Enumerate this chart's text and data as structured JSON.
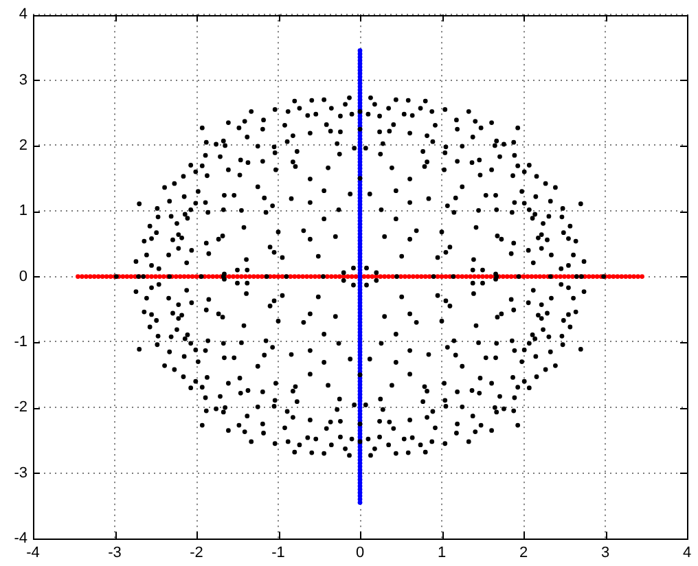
{
  "chart_data": {
    "type": "scatter",
    "xlim": [
      -4,
      4
    ],
    "ylim": [
      -4,
      4
    ],
    "xticks": [
      -4,
      -3,
      -2,
      -1,
      0,
      1,
      2,
      3,
      4
    ],
    "yticks": [
      -4,
      -3,
      -2,
      -1,
      0,
      1,
      2,
      3,
      4
    ],
    "grid": true,
    "marker": "circle",
    "series": [
      {
        "color": "#000000",
        "x": [
          -2.7,
          -2.74,
          -2.64,
          -2.61,
          -2.55,
          -2.46,
          -2.57,
          -2.55,
          -2.49,
          -2.48,
          -2.47,
          -2.39,
          -2.33,
          -2.34,
          -2.31,
          -2.29,
          -2.27,
          -2.24,
          -2.22,
          -2.22,
          -2.18,
          -2.16,
          -2.15,
          -2.14,
          -2.12,
          -2.11,
          -2.07,
          -2.07,
          -2.06,
          -2.01,
          -2.01,
          -1.98,
          -1.93,
          -1.93,
          -1.88,
          -1.89,
          -1.89,
          -1.87,
          -1.86,
          -1.88,
          -1.85,
          -1.76,
          -1.71,
          -1.73,
          -1.67,
          -1.65,
          -1.66,
          -1.67,
          -1.68,
          -1.61,
          -1.61,
          -1.54,
          -1.48,
          -1.46,
          -1.47,
          -1.45,
          -1.42,
          -1.41,
          -1.38,
          -1.37,
          -1.39,
          -1.5,
          -1.38,
          -1.33,
          -1.25,
          -1.25,
          -1.18,
          -1.19,
          -1.19,
          -1.17,
          -1.15,
          -1.1,
          -1.07,
          -1.05,
          -1.04,
          -1.04,
          -1.05,
          -1.03,
          -1.0,
          -0.95,
          -0.92,
          -0.88,
          -0.89,
          -0.82,
          -0.84,
          -0.8,
          -0.82,
          -0.79,
          -0.77,
          -0.74,
          -0.69,
          -0.64,
          -0.61,
          -0.61,
          -0.61,
          -0.59,
          -0.61,
          -0.54,
          -0.51,
          -0.44,
          -0.44,
          -0.44,
          -0.41,
          -0.39,
          -0.36,
          -0.35,
          -0.3,
          -0.28,
          -0.24,
          -0.24,
          -0.25,
          -0.26,
          -0.18,
          -0.13,
          -0.12,
          -0.1,
          -0.07,
          -0.08,
          -0.2,
          -1.66,
          2.7,
          2.74,
          2.64,
          2.61,
          2.55,
          2.46,
          2.57,
          2.55,
          2.49,
          2.48,
          2.47,
          2.39,
          2.33,
          2.34,
          2.31,
          2.29,
          2.27,
          2.24,
          2.22,
          2.22,
          2.18,
          2.16,
          2.15,
          2.14,
          2.12,
          2.11,
          2.07,
          2.07,
          2.06,
          2.01,
          2.01,
          1.98,
          1.93,
          1.93,
          1.88,
          1.89,
          1.89,
          1.87,
          1.86,
          1.88,
          1.85,
          1.76,
          1.71,
          1.73,
          1.67,
          1.65,
          1.66,
          1.67,
          1.68,
          1.61,
          1.61,
          1.54,
          1.48,
          1.46,
          1.47,
          1.45,
          1.42,
          1.41,
          1.38,
          1.37,
          1.39,
          1.5,
          1.38,
          1.33,
          1.25,
          1.25,
          1.18,
          1.19,
          1.19,
          1.17,
          1.15,
          1.1,
          1.07,
          1.05,
          1.04,
          1.04,
          1.05,
          1.03,
          1.0,
          0.95,
          0.92,
          0.88,
          0.89,
          0.82,
          0.84,
          0.8,
          0.82,
          0.79,
          0.77,
          0.74,
          0.69,
          0.64,
          0.61,
          0.61,
          0.61,
          0.59,
          0.61,
          0.54,
          0.51,
          0.44,
          0.44,
          0.44,
          0.41,
          0.39,
          0.36,
          0.35,
          0.3,
          0.28,
          0.24,
          0.24,
          0.25,
          0.26,
          0.18,
          0.13,
          0.12,
          0.1,
          0.07,
          0.08,
          0.2,
          1.66,
          -2.7,
          -2.74,
          -2.64,
          -2.61,
          -2.55,
          -2.46,
          -2.57,
          -2.55,
          -2.49,
          -2.48,
          -2.47,
          -2.39,
          -2.33,
          -2.34,
          -2.31,
          -2.29,
          -2.27,
          -2.24,
          -2.22,
          -2.22,
          -2.18,
          -2.16,
          -2.15,
          -2.14,
          -2.12,
          -2.11,
          -2.07,
          -2.07,
          -2.06,
          -2.01,
          -2.01,
          -1.98,
          -1.93,
          -1.93,
          -1.88,
          -1.89,
          -1.89,
          -1.87,
          -1.86,
          -1.88,
          -1.85,
          -1.76,
          -1.71,
          -1.73,
          -1.67,
          -1.65,
          -1.66,
          -1.67,
          -1.68,
          -1.61,
          -1.61,
          -1.54,
          -1.48,
          -1.46,
          -1.47,
          -1.45,
          -1.42,
          -1.41,
          -1.38,
          -1.37,
          -1.39,
          -1.5,
          -1.38,
          -1.33,
          -1.25,
          -1.25,
          -1.18,
          -1.19,
          -1.19,
          -1.17,
          -1.15,
          -1.1,
          -1.07,
          -1.05,
          -1.04,
          -1.04,
          -1.05,
          -1.03,
          -1.0,
          -0.95,
          -0.92,
          -0.88,
          -0.89,
          -0.82,
          -0.84,
          -0.8,
          -0.82,
          -0.79,
          -0.77,
          -0.74,
          -0.69,
          -0.64,
          -0.61,
          -0.61,
          -0.61,
          -0.59,
          -0.61,
          -0.54,
          -0.51,
          -0.44,
          -0.44,
          -0.44,
          -0.41,
          -0.39,
          -0.36,
          -0.35,
          -0.3,
          -0.28,
          -0.24,
          -0.24,
          -0.25,
          -0.26,
          -0.18,
          -0.13,
          -0.12,
          -0.1,
          -0.07,
          -0.08,
          -0.2,
          -1.66,
          2.7,
          2.74,
          2.64,
          2.61,
          2.55,
          2.46,
          2.57,
          2.55,
          2.49,
          2.48,
          2.47,
          2.39,
          2.33,
          2.34,
          2.31,
          2.29,
          2.27,
          2.24,
          2.22,
          2.22,
          2.18,
          2.16,
          2.15,
          2.14,
          2.12,
          2.11,
          2.07,
          2.07,
          2.06,
          2.01,
          2.01,
          1.98,
          1.93,
          1.93,
          1.88,
          1.89,
          1.89,
          1.87,
          1.86,
          1.88,
          1.85,
          1.76,
          1.71,
          1.73,
          1.67,
          1.65,
          1.66,
          1.67,
          1.68,
          1.61,
          1.61,
          1.54,
          1.48,
          1.46,
          1.47,
          1.45,
          1.42,
          1.41,
          1.38,
          1.37,
          1.39,
          1.5,
          1.38,
          1.33,
          1.25,
          1.25,
          1.18,
          1.19,
          1.19,
          1.17,
          1.15,
          1.1,
          1.07,
          1.05,
          1.04,
          1.04,
          1.05,
          1.03,
          1.0,
          0.95,
          0.92,
          0.88,
          0.89,
          0.82,
          0.84,
          0.8,
          0.82,
          0.79,
          0.77,
          0.74,
          0.69,
          0.64,
          0.61,
          0.61,
          0.61,
          0.59,
          0.61,
          0.54,
          0.51,
          0.44,
          0.44,
          0.44,
          0.41,
          0.39,
          0.36,
          0.35,
          0.3,
          0.28,
          0.24,
          0.24,
          0.25,
          0.26,
          0.18,
          0.13,
          0.12,
          0.1,
          0.07,
          0.08,
          0.2,
          1.66,
          -2.98,
          -2.71,
          -2.65,
          -2.33,
          -1.94,
          -1.67,
          -1.14,
          -0.9,
          -0.45,
          0.45,
          0.9,
          1.14,
          1.67,
          1.94,
          2.33,
          2.65,
          2.71,
          2.98,
          0,
          0,
          0,
          0,
          0,
          0
        ],
        "values": [
          1.11,
          0.23,
          0.54,
          0.33,
          0.17,
          0.12,
          0.77,
          0.58,
          0.67,
          1.04,
          0.91,
          1.36,
          1.15,
          0.33,
          0.92,
          0.56,
          1.42,
          0.81,
          0.64,
          0.43,
          0.59,
          1.53,
          1.22,
          0.95,
          0.21,
          0.89,
          1.7,
          1.02,
          0.4,
          1.6,
          1.12,
          1.3,
          2.27,
          1.69,
          2.05,
          1.85,
          1.13,
          1.54,
          0.98,
          0.51,
          0.35,
          2.02,
          1.83,
          0.57,
          2.07,
          2.0,
          1.24,
          1.02,
          0.62,
          2.35,
          1.63,
          1.24,
          2.27,
          1.78,
          1.55,
          1.01,
          0.75,
          2.37,
          2.13,
          1.74,
          0.26,
          0.1,
          0.1,
          2.52,
          1.99,
          1.37,
          2.39,
          2.25,
          1.76,
          1.2,
          0.98,
          0.45,
          1.08,
          1.98,
          1.89,
          2.55,
          0.37,
          1.63,
          0.68,
          0.29,
          2.31,
          2.52,
          2.06,
          2.15,
          1.19,
          2.68,
          1.75,
          1.68,
          1.91,
          2.57,
          0.7,
          2.46,
          1.49,
          1.13,
          0.57,
          2.69,
          2.19,
          2.48,
          0.31,
          2.7,
          1.31,
          0.88,
          2.32,
          1.66,
          2.22,
          2.57,
          0.61,
          2.03,
          2.21,
          2.45,
          1.87,
          1.02,
          2.63,
          2.73,
          1.26,
          2.48,
          1.96,
          0.13,
          0.06,
          0.04,
          1.11,
          0.23,
          0.54,
          0.33,
          0.17,
          0.12,
          0.77,
          0.58,
          0.67,
          1.04,
          0.91,
          1.36,
          1.15,
          0.33,
          0.92,
          0.56,
          1.42,
          0.81,
          0.64,
          0.43,
          0.59,
          1.53,
          1.22,
          0.95,
          0.21,
          0.89,
          1.7,
          1.02,
          0.4,
          1.6,
          1.12,
          1.3,
          2.27,
          1.69,
          2.05,
          1.85,
          1.13,
          1.54,
          0.98,
          0.51,
          0.35,
          2.02,
          1.83,
          0.57,
          2.07,
          2.0,
          1.24,
          1.02,
          0.62,
          2.35,
          1.63,
          1.24,
          2.27,
          1.78,
          1.55,
          1.01,
          0.75,
          2.37,
          2.13,
          1.74,
          0.26,
          0.1,
          0.1,
          2.52,
          1.99,
          1.37,
          2.39,
          2.25,
          1.76,
          1.2,
          0.98,
          0.45,
          1.08,
          1.98,
          1.89,
          2.55,
          0.37,
          1.63,
          0.68,
          0.29,
          2.31,
          2.52,
          2.06,
          2.15,
          1.19,
          2.68,
          1.75,
          1.68,
          1.91,
          2.57,
          0.7,
          2.46,
          1.49,
          1.13,
          0.57,
          2.69,
          2.19,
          2.48,
          0.31,
          2.7,
          1.31,
          0.88,
          2.32,
          1.66,
          2.22,
          2.57,
          0.61,
          2.03,
          2.21,
          2.45,
          1.87,
          1.02,
          2.63,
          2.73,
          1.26,
          2.48,
          1.96,
          0.13,
          0.06,
          0.04,
          -1.11,
          -0.23,
          -0.54,
          -0.33,
          -0.17,
          -0.12,
          -0.77,
          -0.58,
          -0.67,
          -1.04,
          -0.91,
          -1.36,
          -1.15,
          -0.33,
          -0.92,
          -0.56,
          -1.42,
          -0.81,
          -0.64,
          -0.43,
          -0.59,
          -1.53,
          -1.22,
          -0.95,
          -0.21,
          -0.89,
          -1.7,
          -1.02,
          -0.4,
          -1.6,
          -1.12,
          -1.3,
          -2.27,
          -1.69,
          -2.05,
          -1.85,
          -1.13,
          -1.54,
          -0.98,
          -0.51,
          -0.35,
          -2.02,
          -1.83,
          -0.57,
          -2.07,
          -2.0,
          -1.24,
          -1.02,
          -0.62,
          -2.35,
          -1.63,
          -1.24,
          -2.27,
          -1.78,
          -1.55,
          -1.01,
          -0.75,
          -2.37,
          -2.13,
          -1.74,
          -0.26,
          -0.1,
          -0.1,
          -2.52,
          -1.99,
          -1.37,
          -2.39,
          -2.25,
          -1.76,
          -1.2,
          -0.98,
          -0.45,
          -1.08,
          -1.98,
          -1.89,
          -2.55,
          -0.37,
          -1.63,
          -0.68,
          -0.29,
          -2.31,
          -2.52,
          -2.06,
          -2.15,
          -1.19,
          -2.68,
          -1.75,
          -1.68,
          -1.91,
          -2.57,
          -0.7,
          -2.46,
          -1.49,
          -1.13,
          -0.57,
          -2.69,
          -2.19,
          -2.48,
          -0.31,
          -2.7,
          -1.31,
          -0.88,
          -2.32,
          -1.66,
          -2.22,
          -2.57,
          -0.61,
          -2.03,
          -2.21,
          -2.45,
          -1.87,
          -1.02,
          -2.63,
          -2.73,
          -1.26,
          -2.48,
          -1.96,
          -0.13,
          -0.06,
          -0.04,
          -1.11,
          -0.23,
          -0.54,
          -0.33,
          -0.17,
          -0.12,
          -0.77,
          -0.58,
          -0.67,
          -1.04,
          -0.91,
          -1.36,
          -1.15,
          -0.33,
          -0.92,
          -0.56,
          -1.42,
          -0.81,
          -0.64,
          -0.43,
          -0.59,
          -1.53,
          -1.22,
          -0.95,
          -0.21,
          -0.89,
          -1.7,
          -1.02,
          -0.4,
          -1.6,
          -1.12,
          -1.3,
          -2.27,
          -1.69,
          -2.05,
          -1.85,
          -1.13,
          -1.54,
          -0.98,
          -0.51,
          -0.35,
          -2.02,
          -1.83,
          -0.57,
          -2.07,
          -2.0,
          -1.24,
          -1.02,
          -0.62,
          -2.35,
          -1.63,
          -1.24,
          -2.27,
          -1.78,
          -1.55,
          -1.01,
          -0.75,
          -2.37,
          -2.13,
          -1.74,
          -0.26,
          -0.1,
          -0.1,
          -2.52,
          -1.99,
          -1.37,
          -2.39,
          -2.25,
          -1.76,
          -1.2,
          -0.98,
          -0.45,
          -1.08,
          -1.98,
          -1.89,
          -2.55,
          -0.37,
          -1.63,
          -0.68,
          -0.29,
          -2.31,
          -2.52,
          -2.06,
          -2.15,
          -1.19,
          -2.68,
          -1.75,
          -1.68,
          -1.91,
          -2.57,
          -0.7,
          -2.46,
          -1.49,
          -1.13,
          -0.57,
          -2.69,
          -2.19,
          -2.48,
          -0.31,
          -2.7,
          -1.31,
          -0.88,
          -2.32,
          -1.66,
          -2.22,
          -2.57,
          -0.61,
          -2.03,
          -2.21,
          -2.45,
          -1.87,
          -1.02,
          -2.63,
          -2.73,
          -1.26,
          -2.48,
          -1.96,
          -0.13,
          -0.06,
          -0.04,
          0,
          0,
          0,
          0,
          0,
          0,
          0,
          0,
          0,
          0,
          0,
          0,
          0,
          0,
          0,
          0,
          0,
          0,
          2.52,
          2.25,
          1.5,
          -1.5,
          -2.25,
          -2.52
        ]
      },
      {
        "color": "#0000ff",
        "x": [
          0,
          0,
          0,
          0,
          0,
          0,
          0,
          0,
          0,
          0,
          0,
          0,
          0,
          0,
          0,
          0,
          0,
          0,
          0,
          0,
          0,
          0,
          0,
          0,
          0,
          0,
          0,
          0,
          0,
          0,
          0,
          0,
          0,
          0,
          0,
          0,
          0,
          0,
          0,
          0,
          0,
          0,
          0,
          0,
          0,
          0,
          0,
          0,
          0,
          0,
          0,
          0,
          0,
          0,
          0,
          0,
          0,
          0,
          0,
          0,
          0,
          0,
          0,
          0,
          0,
          0,
          0,
          0,
          0,
          0,
          0,
          0,
          0,
          0,
          0,
          0,
          0,
          0,
          0,
          0,
          0,
          0,
          0,
          0,
          0,
          0,
          0,
          0,
          0,
          0,
          0,
          0,
          0,
          0,
          0,
          0,
          0,
          0,
          0,
          0,
          0,
          0,
          0,
          0,
          0,
          0,
          0,
          0,
          0,
          0,
          0,
          0,
          0,
          0,
          0,
          0,
          0,
          0,
          0,
          0,
          0,
          0,
          0,
          0,
          0,
          0,
          0,
          0,
          0,
          0,
          0,
          0,
          0,
          0,
          0,
          0,
          0,
          0,
          0
        ],
        "values": [
          -3.45,
          -3.4,
          -3.35,
          -3.3,
          -3.25,
          -3.2,
          -3.15,
          -3.1,
          -3.05,
          -3,
          -2.95,
          -2.9,
          -2.85,
          -2.8,
          -2.75,
          -2.7,
          -2.65,
          -2.6,
          -2.55,
          -2.5,
          -2.45,
          -2.4,
          -2.35,
          -2.3,
          -2.25,
          -2.2,
          -2.15,
          -2.1,
          -2.05,
          -2,
          -1.95,
          -1.9,
          -1.85,
          -1.8,
          -1.75,
          -1.7,
          -1.65,
          -1.6,
          -1.55,
          -1.5,
          -1.45,
          -1.4,
          -1.35,
          -1.3,
          -1.25,
          -1.2,
          -1.15,
          -1.1,
          -1.05,
          -1,
          -0.95,
          -0.9,
          -0.85,
          -0.8,
          -0.75,
          -0.7,
          -0.65,
          -0.6,
          -0.55,
          -0.5,
          -0.45,
          -0.4,
          -0.35,
          -0.3,
          -0.25,
          -0.2,
          -0.15,
          -0.1,
          -0.05,
          0,
          0.05,
          0.1,
          0.15,
          0.2,
          0.25,
          0.3,
          0.35,
          0.4,
          0.45,
          0.5,
          0.55,
          0.6,
          0.65,
          0.7,
          0.75,
          0.8,
          0.85,
          0.9,
          0.95,
          1,
          1.05,
          1.1,
          1.15,
          1.2,
          1.25,
          1.3,
          1.35,
          1.4,
          1.45,
          1.5,
          1.55,
          1.6,
          1.65,
          1.7,
          1.75,
          1.8,
          1.85,
          1.9,
          1.95,
          2,
          2.05,
          2.1,
          2.15,
          2.2,
          2.25,
          2.3,
          2.35,
          2.4,
          2.45,
          2.5,
          2.55,
          2.6,
          2.65,
          2.7,
          2.75,
          2.8,
          2.85,
          2.9,
          2.95,
          3,
          3.05,
          3.1,
          3.15,
          3.2,
          3.25,
          3.3,
          3.35,
          3.4,
          3.45
        ]
      },
      {
        "color": "#ff0000",
        "x": [
          -3.45,
          -3.4,
          -3.35,
          -3.3,
          -3.25,
          -3.2,
          -3.15,
          -3.1,
          -3.05,
          -3,
          -2.95,
          -2.9,
          -2.85,
          -2.8,
          -2.75,
          -2.7,
          -2.65,
          -2.6,
          -2.55,
          -2.5,
          -2.45,
          -2.4,
          -2.35,
          -2.3,
          -2.25,
          -2.2,
          -2.15,
          -2.1,
          -2.05,
          -2,
          -1.95,
          -1.9,
          -1.85,
          -1.8,
          -1.75,
          -1.7,
          -1.65,
          -1.6,
          -1.55,
          -1.5,
          -1.45,
          -1.4,
          -1.35,
          -1.3,
          -1.25,
          -1.2,
          -1.15,
          -1.1,
          -1.05,
          -1,
          -0.95,
          -0.9,
          -0.85,
          -0.8,
          -0.75,
          -0.7,
          -0.65,
          -0.6,
          -0.55,
          -0.5,
          -0.45,
          -0.4,
          -0.35,
          -0.3,
          -0.25,
          -0.2,
          -0.15,
          -0.1,
          -0.05,
          0,
          0.05,
          0.1,
          0.15,
          0.2,
          0.25,
          0.3,
          0.35,
          0.4,
          0.45,
          0.5,
          0.55,
          0.6,
          0.65,
          0.7,
          0.75,
          0.8,
          0.85,
          0.9,
          0.95,
          1,
          1.05,
          1.1,
          1.15,
          1.2,
          1.25,
          1.3,
          1.35,
          1.4,
          1.45,
          1.5,
          1.55,
          1.6,
          1.65,
          1.7,
          1.75,
          1.8,
          1.85,
          1.9,
          1.95,
          2,
          2.05,
          2.1,
          2.15,
          2.2,
          2.25,
          2.3,
          2.35,
          2.4,
          2.45,
          2.5,
          2.55,
          2.6,
          2.65,
          2.7,
          2.75,
          2.8,
          2.85,
          2.9,
          2.95,
          3,
          3.05,
          3.1,
          3.15,
          3.2,
          3.25,
          3.3,
          3.35,
          3.4,
          3.45
        ],
        "values": [
          0,
          0,
          0,
          0,
          0,
          0,
          0,
          0,
          0,
          0,
          0,
          0,
          0,
          0,
          0,
          0,
          0,
          0,
          0,
          0,
          0,
          0,
          0,
          0,
          0,
          0,
          0,
          0,
          0,
          0,
          0,
          0,
          0,
          0,
          0,
          0,
          0,
          0,
          0,
          0,
          0,
          0,
          0,
          0,
          0,
          0,
          0,
          0,
          0,
          0,
          0,
          0,
          0,
          0,
          0,
          0,
          0,
          0,
          0,
          0,
          0,
          0,
          0,
          0,
          0,
          0,
          0,
          0,
          0,
          0,
          0,
          0,
          0,
          0,
          0,
          0,
          0,
          0,
          0,
          0,
          0,
          0,
          0,
          0,
          0,
          0,
          0,
          0,
          0,
          0,
          0,
          0,
          0,
          0,
          0,
          0,
          0,
          0,
          0,
          0,
          0,
          0,
          0,
          0,
          0,
          0,
          0,
          0,
          0,
          0,
          0,
          0,
          0,
          0,
          0,
          0,
          0,
          0,
          0,
          0,
          0,
          0,
          0,
          0,
          0,
          0,
          0,
          0,
          0,
          0,
          0,
          0,
          0,
          0,
          0,
          0,
          0,
          0,
          0
        ]
      }
    ]
  }
}
